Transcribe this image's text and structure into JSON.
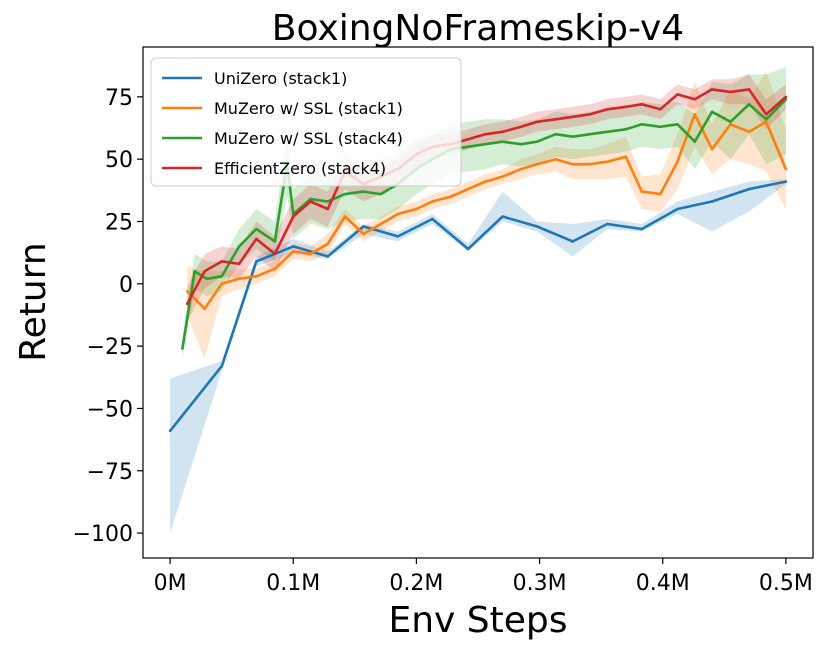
{
  "chart_data": {
    "type": "line",
    "title": "BoxingNoFrameskip-v4",
    "xlabel": "Env Steps",
    "ylabel": "Return",
    "xlim": [
      -0.022,
      0.522
    ],
    "ylim": [
      -110,
      95
    ],
    "x_ticks": [
      0,
      0.1,
      0.2,
      0.3,
      0.4,
      0.5
    ],
    "x_tick_labels": [
      "0M",
      "0.1M",
      "0.2M",
      "0.3M",
      "0.4M",
      "0.5M"
    ],
    "y_ticks": [
      -100,
      -75,
      -50,
      -25,
      0,
      25,
      50,
      75
    ],
    "y_tick_labels": [
      "−100",
      "−75",
      "−50",
      "−25",
      "0",
      "25",
      "50",
      "75"
    ],
    "grid": false,
    "legend_position": "top-left",
    "series": [
      {
        "name": "UniZero (stack1)",
        "color": "#1f77b4",
        "x": [
          0,
          0.042,
          0.07,
          0.1,
          0.128,
          0.157,
          0.185,
          0.213,
          0.242,
          0.27,
          0.298,
          0.327,
          0.355,
          0.383,
          0.412,
          0.44,
          0.47,
          0.5
        ],
        "y": [
          -59,
          -33,
          9,
          15,
          11,
          23,
          19,
          26,
          14,
          27,
          23,
          17,
          24,
          22,
          30,
          33,
          38,
          41
        ],
        "lower": [
          -100,
          -35,
          7,
          12,
          10,
          20,
          17,
          24,
          13,
          25,
          21,
          11,
          22,
          21,
          28,
          21,
          29,
          40
        ],
        "upper": [
          -38,
          -31,
          11,
          18,
          13,
          24,
          21,
          28,
          16,
          37,
          25,
          24,
          26,
          24,
          33,
          37,
          41,
          42
        ]
      },
      {
        "name": "MuZero w/ SSL (stack1)",
        "color": "#ff7f0e",
        "x": [
          0.014,
          0.028,
          0.042,
          0.056,
          0.07,
          0.085,
          0.1,
          0.114,
          0.128,
          0.142,
          0.157,
          0.171,
          0.185,
          0.2,
          0.213,
          0.228,
          0.242,
          0.256,
          0.27,
          0.285,
          0.298,
          0.313,
          0.327,
          0.341,
          0.355,
          0.37,
          0.383,
          0.398,
          0.412,
          0.426,
          0.44,
          0.455,
          0.47,
          0.484,
          0.5
        ],
        "y": [
          -3,
          -10,
          0,
          2,
          3,
          6,
          13,
          12,
          16,
          27,
          20,
          24,
          28,
          30,
          33,
          35,
          38,
          41,
          43,
          46,
          48,
          50,
          48,
          48,
          49,
          51,
          37,
          36,
          49,
          68,
          54,
          64,
          61,
          65,
          46
        ],
        "lower": [
          -13,
          -30,
          -5,
          -2,
          0,
          3,
          10,
          9,
          12,
          24,
          17,
          21,
          25,
          27,
          30,
          32,
          35,
          38,
          40,
          42,
          44,
          45,
          42,
          42,
          42,
          43,
          30,
          29,
          38,
          55,
          44,
          50,
          48,
          45,
          30
        ],
        "upper": [
          7,
          5,
          5,
          6,
          6,
          9,
          16,
          15,
          20,
          30,
          23,
          27,
          31,
          33,
          36,
          38,
          41,
          44,
          46,
          50,
          52,
          55,
          54,
          54,
          56,
          59,
          43,
          44,
          60,
          81,
          64,
          78,
          74,
          85,
          62
        ]
      },
      {
        "name": "MuZero w/ SSL (stack4)",
        "color": "#2ca02c",
        "x": [
          0.01,
          0.02,
          0.03,
          0.042,
          0.056,
          0.07,
          0.085,
          0.095,
          0.1,
          0.114,
          0.128,
          0.142,
          0.157,
          0.171,
          0.185,
          0.2,
          0.213,
          0.228,
          0.242,
          0.256,
          0.27,
          0.285,
          0.298,
          0.313,
          0.327,
          0.341,
          0.355,
          0.37,
          0.383,
          0.398,
          0.412,
          0.426,
          0.44,
          0.455,
          0.47,
          0.484,
          0.5
        ],
        "y": [
          -26,
          5,
          2,
          3,
          15,
          22,
          17,
          48,
          28,
          34,
          33,
          36,
          37,
          36,
          40,
          46,
          50,
          54,
          55,
          56,
          57,
          56,
          57,
          60,
          59,
          60,
          61,
          62,
          64,
          63,
          64,
          57,
          69,
          65,
          72,
          66,
          74
        ],
        "lower": [
          -30,
          -2,
          -5,
          -3,
          8,
          14,
          9,
          35,
          18,
          24,
          22,
          25,
          26,
          26,
          30,
          36,
          40,
          44,
          45,
          46,
          48,
          47,
          48,
          51,
          50,
          51,
          52,
          53,
          55,
          54,
          55,
          46,
          57,
          50,
          60,
          48,
          52
        ],
        "upper": [
          -22,
          12,
          9,
          9,
          22,
          30,
          25,
          60,
          38,
          44,
          44,
          47,
          48,
          46,
          50,
          56,
          60,
          64,
          65,
          66,
          66,
          65,
          66,
          69,
          68,
          69,
          70,
          71,
          73,
          72,
          73,
          68,
          81,
          80,
          84,
          84,
          87
        ]
      },
      {
        "name": "EfficientZero (stack4)",
        "color": "#d62728",
        "x": [
          0.014,
          0.028,
          0.042,
          0.056,
          0.07,
          0.085,
          0.1,
          0.114,
          0.128,
          0.142,
          0.157,
          0.171,
          0.185,
          0.2,
          0.213,
          0.228,
          0.242,
          0.256,
          0.27,
          0.285,
          0.298,
          0.313,
          0.327,
          0.341,
          0.355,
          0.37,
          0.383,
          0.398,
          0.412,
          0.426,
          0.44,
          0.455,
          0.47,
          0.484,
          0.5
        ],
        "y": [
          -8,
          5,
          9,
          8,
          18,
          12,
          27,
          33,
          30,
          45,
          40,
          43,
          46,
          52,
          55,
          56,
          58,
          60,
          61,
          63,
          65,
          66,
          67,
          68,
          70,
          71,
          72,
          70,
          76,
          74,
          78,
          77,
          78,
          68,
          75
        ],
        "lower": [
          -15,
          -2,
          3,
          2,
          11,
          5,
          20,
          26,
          23,
          38,
          33,
          36,
          40,
          46,
          50,
          52,
          54,
          56,
          57,
          59,
          61,
          62,
          63,
          64,
          66,
          67,
          68,
          66,
          72,
          70,
          74,
          72,
          72,
          62,
          70
        ],
        "upper": [
          -1,
          12,
          15,
          14,
          25,
          19,
          34,
          40,
          37,
          52,
          47,
          50,
          52,
          58,
          60,
          60,
          62,
          64,
          65,
          67,
          69,
          70,
          71,
          72,
          74,
          75,
          76,
          74,
          80,
          78,
          82,
          82,
          84,
          74,
          80
        ]
      }
    ]
  }
}
